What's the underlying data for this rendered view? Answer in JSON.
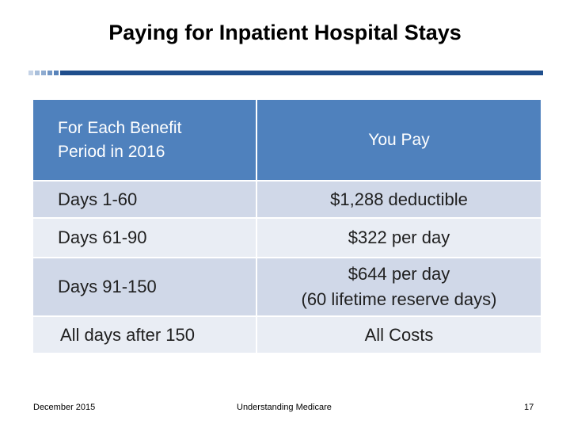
{
  "slide": {
    "title": "Paying for Inpatient Hospital Stays"
  },
  "accent": {
    "square_colors": [
      "#c5d3e6",
      "#a9bfdb",
      "#8eabd0",
      "#7397c5",
      "#5883ba"
    ],
    "line_color": "#1f4e8c",
    "header_color": "#4f81bd"
  },
  "table": {
    "header": {
      "col1_line1": "For Each Benefit",
      "col1_line2": "Period in 2016",
      "col2": "You Pay"
    },
    "rows": [
      {
        "period": "Days 1-60",
        "pay": "$1,288 deductible"
      },
      {
        "period": "Days 61-90",
        "pay": "$322 per day"
      },
      {
        "period": "Days 91-150",
        "pay_line1": "$644 per day",
        "pay_line2": "(60 lifetime reserve days)"
      },
      {
        "period": "All days after 150",
        "pay": "All Costs"
      }
    ]
  },
  "footer": {
    "date": "December 2015",
    "center": "Understanding Medicare",
    "page_number": "17"
  }
}
